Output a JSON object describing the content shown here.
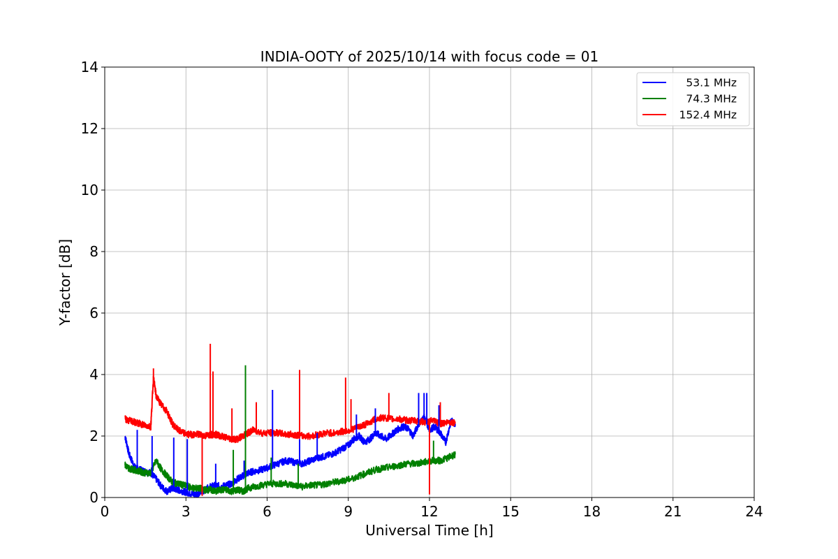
{
  "chart_data": {
    "type": "line",
    "title": "INDIA-OOTY of 2025/10/14 with focus code = 01",
    "xlabel": "Universal Time [h]",
    "ylabel": "Y-factor [dB]",
    "xlim": [
      0,
      24
    ],
    "ylim": [
      0,
      14
    ],
    "xticks": [
      "0",
      "3",
      "6",
      "9",
      "12",
      "15",
      "18",
      "21",
      "24"
    ],
    "yticks": [
      "0",
      "2",
      "4",
      "6",
      "8",
      "10",
      "12",
      "14"
    ],
    "grid": true,
    "legend_position": "top-right",
    "series": [
      {
        "name": "53.1 MHz",
        "color": "#0000ff",
        "x": [
          0.75,
          0.9,
          1.1,
          1.3,
          1.5,
          1.7,
          1.9,
          2.1,
          2.3,
          2.5,
          2.7,
          2.9,
          3.1,
          3.3,
          3.5,
          3.7,
          3.9,
          4.1,
          4.3,
          4.5,
          4.7,
          4.9,
          5.1,
          5.3,
          5.5,
          5.8,
          6.1,
          6.4,
          6.7,
          7.0,
          7.3,
          7.6,
          7.9,
          8.2,
          8.5,
          8.8,
          9.0,
          9.2,
          9.4,
          9.6,
          9.8,
          10.0,
          10.2,
          10.4,
          10.6,
          10.8,
          11.0,
          11.2,
          11.4,
          11.6,
          11.8,
          12.0,
          12.2,
          12.4,
          12.6,
          12.8,
          12.95
        ],
        "y": [
          2.0,
          1.4,
          1.0,
          0.9,
          0.85,
          0.8,
          0.6,
          0.35,
          0.2,
          0.3,
          0.25,
          0.2,
          0.15,
          0.1,
          0.15,
          0.25,
          0.35,
          0.4,
          0.35,
          0.4,
          0.45,
          0.6,
          0.7,
          0.8,
          0.85,
          0.9,
          1.0,
          1.1,
          1.2,
          1.15,
          1.1,
          1.2,
          1.3,
          1.35,
          1.45,
          1.6,
          1.7,
          1.9,
          2.0,
          1.8,
          1.9,
          2.1,
          2.0,
          1.9,
          2.05,
          2.2,
          2.3,
          2.25,
          2.0,
          2.4,
          2.6,
          2.2,
          2.3,
          2.1,
          1.8,
          2.5,
          2.4
        ]
      },
      {
        "name": "74.3 MHz",
        "color": "#008000",
        "x": [
          0.75,
          0.9,
          1.1,
          1.3,
          1.5,
          1.7,
          1.9,
          2.1,
          2.3,
          2.5,
          2.7,
          2.9,
          3.1,
          3.3,
          3.5,
          3.7,
          3.9,
          4.1,
          4.3,
          4.5,
          4.7,
          4.9,
          5.1,
          5.3,
          5.5,
          5.8,
          6.1,
          6.4,
          6.7,
          7.0,
          7.3,
          7.6,
          7.9,
          8.2,
          8.5,
          8.8,
          9.1,
          9.4,
          9.7,
          10.0,
          10.3,
          10.6,
          10.9,
          11.2,
          11.5,
          11.8,
          12.1,
          12.4,
          12.7,
          12.95
        ],
        "y": [
          1.05,
          0.95,
          0.9,
          0.85,
          0.8,
          0.8,
          1.2,
          0.9,
          0.7,
          0.5,
          0.45,
          0.4,
          0.35,
          0.3,
          0.3,
          0.25,
          0.25,
          0.2,
          0.25,
          0.25,
          0.2,
          0.25,
          0.2,
          0.3,
          0.35,
          0.4,
          0.45,
          0.45,
          0.45,
          0.4,
          0.35,
          0.4,
          0.4,
          0.45,
          0.5,
          0.55,
          0.6,
          0.7,
          0.8,
          0.9,
          0.95,
          1.0,
          1.05,
          1.1,
          1.1,
          1.15,
          1.2,
          1.2,
          1.3,
          1.4
        ]
      },
      {
        "name": "152.4 MHz",
        "color": "#ff0000",
        "x": [
          0.75,
          0.9,
          1.1,
          1.3,
          1.5,
          1.7,
          1.8,
          1.9,
          2.1,
          2.3,
          2.5,
          2.7,
          2.9,
          3.1,
          3.3,
          3.5,
          3.7,
          3.9,
          4.1,
          4.3,
          4.5,
          4.7,
          4.9,
          5.1,
          5.3,
          5.5,
          5.8,
          6.1,
          6.4,
          6.7,
          7.0,
          7.3,
          7.6,
          7.9,
          8.2,
          8.5,
          8.8,
          9.1,
          9.4,
          9.7,
          10.0,
          10.3,
          10.6,
          10.9,
          11.2,
          11.5,
          11.8,
          12.1,
          12.4,
          12.7,
          12.95
        ],
        "y": [
          2.55,
          2.5,
          2.45,
          2.4,
          2.35,
          2.3,
          3.9,
          3.3,
          3.0,
          2.8,
          2.4,
          2.2,
          2.1,
          2.05,
          2.05,
          2.05,
          2.0,
          2.05,
          2.05,
          2.0,
          1.95,
          1.9,
          1.9,
          2.0,
          2.1,
          2.2,
          2.1,
          2.1,
          2.1,
          2.05,
          2.05,
          2.0,
          2.0,
          2.05,
          2.1,
          2.1,
          2.15,
          2.2,
          2.3,
          2.4,
          2.55,
          2.6,
          2.55,
          2.55,
          2.5,
          2.5,
          2.45,
          2.5,
          2.4,
          2.45,
          2.45
        ]
      }
    ],
    "spikes": [
      {
        "series": "53.1 MHz",
        "x": 1.2,
        "y": 2.2
      },
      {
        "series": "53.1 MHz",
        "x": 1.75,
        "y": 2.0
      },
      {
        "series": "53.1 MHz",
        "x": 2.55,
        "y": 1.95
      },
      {
        "series": "53.1 MHz",
        "x": 3.05,
        "y": 1.9
      },
      {
        "series": "53.1 MHz",
        "x": 4.1,
        "y": 1.1
      },
      {
        "series": "53.1 MHz",
        "x": 5.15,
        "y": 1.2
      },
      {
        "series": "53.1 MHz",
        "x": 6.2,
        "y": 3.5
      },
      {
        "series": "53.1 MHz",
        "x": 7.2,
        "y": 1.9
      },
      {
        "series": "53.1 MHz",
        "x": 7.85,
        "y": 2.1
      },
      {
        "series": "53.1 MHz",
        "x": 9.3,
        "y": 2.7
      },
      {
        "series": "53.1 MHz",
        "x": 10.0,
        "y": 2.9
      },
      {
        "series": "53.1 MHz",
        "x": 11.6,
        "y": 3.4
      },
      {
        "series": "53.1 MHz",
        "x": 11.8,
        "y": 3.4
      },
      {
        "series": "53.1 MHz",
        "x": 11.9,
        "y": 3.4
      },
      {
        "series": "53.1 MHz",
        "x": 12.35,
        "y": 3.0
      },
      {
        "series": "74.3 MHz",
        "x": 4.75,
        "y": 1.55
      },
      {
        "series": "74.3 MHz",
        "x": 5.2,
        "y": 4.3
      },
      {
        "series": "74.3 MHz",
        "x": 6.15,
        "y": 1.3
      },
      {
        "series": "74.3 MHz",
        "x": 7.15,
        "y": 1.1
      },
      {
        "series": "74.3 MHz",
        "x": 12.15,
        "y": 1.85
      },
      {
        "series": "152.4 MHz",
        "x": 1.8,
        "y": 4.2
      },
      {
        "series": "152.4 MHz",
        "x": 3.6,
        "y": 0.05
      },
      {
        "series": "152.4 MHz",
        "x": 3.9,
        "y": 5.0
      },
      {
        "series": "152.4 MHz",
        "x": 4.0,
        "y": 4.1
      },
      {
        "series": "152.4 MHz",
        "x": 4.7,
        "y": 2.9
      },
      {
        "series": "152.4 MHz",
        "x": 5.6,
        "y": 3.1
      },
      {
        "series": "152.4 MHz",
        "x": 7.2,
        "y": 4.15
      },
      {
        "series": "152.4 MHz",
        "x": 8.9,
        "y": 3.9
      },
      {
        "series": "152.4 MHz",
        "x": 9.1,
        "y": 3.2
      },
      {
        "series": "152.4 MHz",
        "x": 10.5,
        "y": 3.4
      },
      {
        "series": "152.4 MHz",
        "x": 12.0,
        "y": 0.1
      },
      {
        "series": "152.4 MHz",
        "x": 12.4,
        "y": 3.1
      }
    ],
    "legend": [
      {
        "label": "53.1 MHz",
        "color": "#0000ff"
      },
      {
        "label": "74.3 MHz",
        "color": "#008000"
      },
      {
        "label": "152.4 MHz",
        "color": "#ff0000"
      }
    ]
  }
}
